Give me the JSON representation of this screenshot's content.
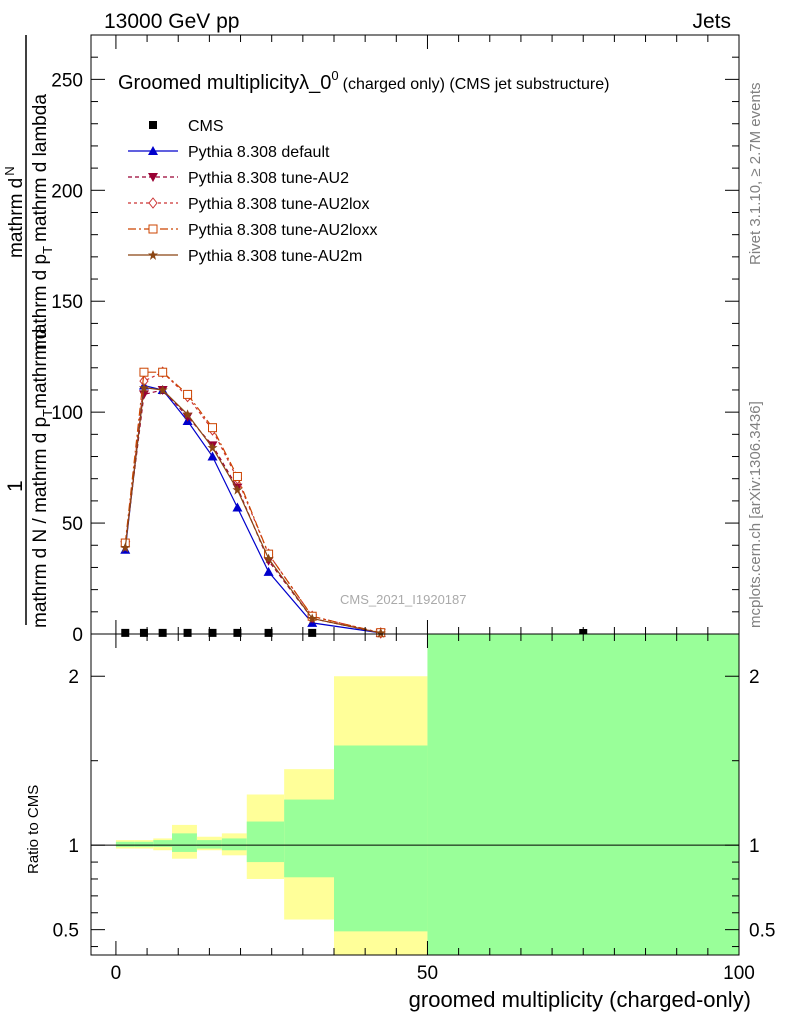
{
  "header": {
    "left": "13000 GeV pp",
    "right": "Jets"
  },
  "side_labels": {
    "rivet": "Rivet 3.1.10, ≥ 2.7M events",
    "site": "mcplots.cern.ch [arXiv:1306.3436]"
  },
  "watermark": "CMS_2021_I1920187",
  "chart_data": [
    {
      "type": "line",
      "title": "Groomed multiplicityλ_0",
      "title_sup": "0",
      "title_suffix": "(charged only) (CMS jet substructure)",
      "ylabel_numerator": "1",
      "ylabel_denominator": "mathrm d N / mathrm d p",
      "ylabel_numerator_main": "mathrm d",
      "ylabel_numerator_main2": "N",
      "ylabel_numerator_rest": "mathrm d p",
      "ylabel_rest2": "mathrm d lambda",
      "ylabel_sub": "T",
      "xlim": [
        -4,
        100
      ],
      "ylim": [
        0,
        270
      ],
      "yticks": [
        0,
        50,
        100,
        150,
        200,
        250
      ],
      "x": [
        1.5,
        4.5,
        7.5,
        11.5,
        15.5,
        19.5,
        24.5,
        31.5,
        42.5,
        75
      ],
      "series": [
        {
          "name": "CMS",
          "color": "#000000",
          "marker": "square",
          "values": [
            0.5,
            0.5,
            0.5,
            0.5,
            0.5,
            0.5,
            0.5,
            0.5,
            0.3,
            0.3
          ]
        },
        {
          "name": "Pythia 8.308 default",
          "color": "#0000cc",
          "marker": "triangle",
          "dash": "",
          "values": [
            38,
            112,
            110,
            96,
            80,
            57,
            28,
            5,
            0.5,
            0
          ]
        },
        {
          "name": "Pythia 8.308 tune-AU2",
          "color": "#990033",
          "marker": "triangle-down",
          "dash": "4,3",
          "values": [
            40,
            108,
            110,
            98,
            85,
            66,
            33,
            7,
            0.5,
            0
          ]
        },
        {
          "name": "Pythia 8.308 tune-AU2lox",
          "color": "#cc3333",
          "marker": "diamond",
          "dash": "3,3",
          "values": [
            40,
            114,
            118,
            107,
            92,
            70,
            36,
            8,
            0.5,
            0
          ]
        },
        {
          "name": "Pythia 8.308 tune-AU2loxx",
          "color": "#cc4400",
          "marker": "open-square",
          "dash": "8,3,2,3",
          "values": [
            41,
            118,
            118,
            108,
            93,
            71,
            36,
            8,
            0.6,
            0
          ]
        },
        {
          "name": "Pythia 8.308 tune-AU2m",
          "color": "#8b4513",
          "marker": "star",
          "dash": "",
          "values": [
            39,
            111,
            110,
            99,
            84,
            65,
            34,
            7,
            0.5,
            0
          ]
        }
      ]
    },
    {
      "type": "area",
      "ylabel": "Ratio to CMS",
      "xlabel": "groomed multiplicity (charged-only)",
      "xlim": [
        -4,
        100
      ],
      "ylim": [
        0.35,
        2.25
      ],
      "yticks": [
        0.5,
        1,
        2
      ],
      "xticks": [
        0,
        50,
        100
      ],
      "ytick_labels": [
        "0.5",
        "1",
        "2"
      ],
      "xtick_labels": [
        "0",
        "50",
        "100"
      ],
      "bins": [
        {
          "x0": 0,
          "x1": 3,
          "stat_lo": 0.99,
          "stat_hi": 1.02,
          "tot_lo": 0.98,
          "tot_hi": 1.03
        },
        {
          "x0": 3,
          "x1": 6,
          "stat_lo": 0.99,
          "stat_hi": 1.02,
          "tot_lo": 0.98,
          "tot_hi": 1.03
        },
        {
          "x0": 6,
          "x1": 9,
          "stat_lo": 0.99,
          "stat_hi": 1.03,
          "tot_lo": 0.97,
          "tot_hi": 1.04
        },
        {
          "x0": 9,
          "x1": 13,
          "stat_lo": 0.96,
          "stat_hi": 1.07,
          "tot_lo": 0.92,
          "tot_hi": 1.12
        },
        {
          "x0": 13,
          "x1": 17,
          "stat_lo": 0.98,
          "stat_hi": 1.03,
          "tot_lo": 0.97,
          "tot_hi": 1.05
        },
        {
          "x0": 17,
          "x1": 21,
          "stat_lo": 0.97,
          "stat_hi": 1.04,
          "tot_lo": 0.94,
          "tot_hi": 1.07
        },
        {
          "x0": 21,
          "x1": 27,
          "stat_lo": 0.9,
          "stat_hi": 1.14,
          "tot_lo": 0.8,
          "tot_hi": 1.3
        },
        {
          "x0": 27,
          "x1": 35,
          "stat_lo": 0.81,
          "stat_hi": 1.27,
          "tot_lo": 0.56,
          "tot_hi": 1.45
        },
        {
          "x0": 35,
          "x1": 50,
          "stat_lo": 0.49,
          "stat_hi": 1.59,
          "tot_lo": 0.35,
          "tot_hi": 2.0
        },
        {
          "x0": 50,
          "x1": 100,
          "stat_lo": 0.35,
          "stat_hi": 2.25,
          "tot_lo": 0.35,
          "tot_hi": 2.25
        }
      ],
      "colors": {
        "stat": "#99ff99",
        "total": "#ffff99"
      }
    }
  ]
}
